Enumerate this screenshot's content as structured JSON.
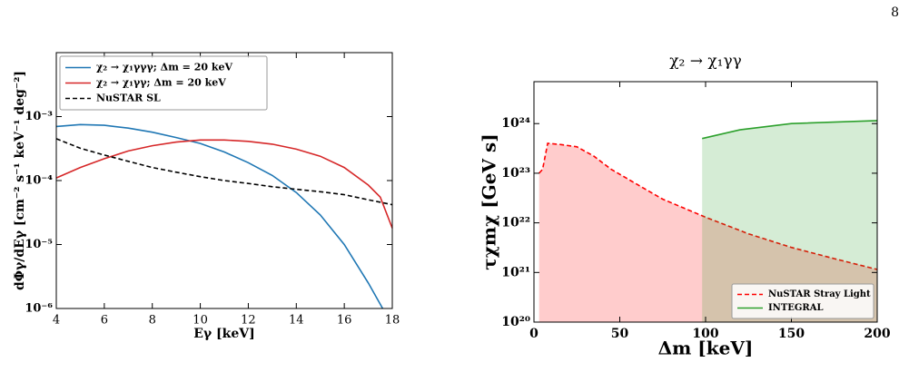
{
  "page_number": "8",
  "chart_data": [
    {
      "type": "line",
      "xlabel": "Eγ [keV]",
      "ylabel": "dΦγ/dEγ [cm⁻² s⁻¹ keV⁻¹ deg⁻²]",
      "xlim": [
        4,
        18
      ],
      "xticks": [
        4,
        6,
        8,
        10,
        12,
        14,
        16,
        18
      ],
      "ylog": true,
      "ylim": [
        1e-06,
        0.01
      ],
      "yticks": [
        {
          "value": 1e-06,
          "label": "10⁻⁶"
        },
        {
          "value": 1e-05,
          "label": "10⁻⁵"
        },
        {
          "value": 0.0001,
          "label": "10⁻⁴"
        },
        {
          "value": 0.001,
          "label": "10⁻³"
        }
      ],
      "legend": "upper left",
      "fill": false,
      "series": [
        {
          "name": "χ₂ → χ₁γγγ; Δm = 20 keV",
          "color": "#1f77b4",
          "linestyle": "solid",
          "x": [
            4,
            5,
            6,
            7,
            8,
            9,
            10,
            11,
            12,
            13,
            14,
            15,
            16,
            17,
            17.6
          ],
          "values": [
            0.0007,
            0.00075,
            0.00073,
            0.00066,
            0.00057,
            0.00047,
            0.00038,
            0.00028,
            0.00019,
            0.00012,
            6.5e-05,
            2.9e-05,
            1e-05,
            2.5e-06,
            1e-06
          ]
        },
        {
          "name": "χ₂ → χ₁γγ; Δm = 20 keV",
          "color": "#d62728",
          "linestyle": "solid",
          "x": [
            4,
            5,
            6,
            7,
            8,
            9,
            10,
            11,
            12,
            13,
            14,
            15,
            16,
            17,
            17.5,
            18
          ],
          "values": [
            0.00011,
            0.00016,
            0.00022,
            0.00029,
            0.00035,
            0.0004,
            0.00043,
            0.00043,
            0.00041,
            0.00037,
            0.00031,
            0.00024,
            0.00016,
            8.5e-05,
            5.5e-05,
            1.8e-05
          ]
        },
        {
          "name": "NuSTAR SL",
          "color": "#000000",
          "linestyle": "dashed",
          "x": [
            4,
            5,
            6,
            7,
            8,
            9,
            10,
            11,
            12,
            13,
            14,
            15,
            16,
            17,
            18
          ],
          "values": [
            0.00045,
            0.00032,
            0.00025,
            0.0002,
            0.00016,
            0.000135,
            0.000115,
            0.0001,
            9e-05,
            8e-05,
            7.3e-05,
            6.7e-05,
            6e-05,
            5e-05,
            4.2e-05
          ]
        }
      ]
    },
    {
      "type": "line",
      "title": "χ₂ → χ₁γγ",
      "xlabel": "Δm [keV]",
      "ylabel": "τχmχ [GeV s]",
      "xlim": [
        0,
        200
      ],
      "xticks": [
        0,
        50,
        100,
        150,
        200
      ],
      "ylog": true,
      "ylim": [
        1e+20,
        7e+24
      ],
      "yticks": [
        {
          "value": 1e+20,
          "label": "10²⁰"
        },
        {
          "value": 1e+21,
          "label": "10²¹"
        },
        {
          "value": 1e+22,
          "label": "10²²"
        },
        {
          "value": 1e+23,
          "label": "10²³"
        },
        {
          "value": 1e+24,
          "label": "10²⁴"
        }
      ],
      "legend": "lower right",
      "fill": true,
      "series": [
        {
          "name": "NuSTAR Stray Light",
          "color": "#ff0000",
          "linestyle": "dashed",
          "x": [
            3,
            5,
            8,
            15,
            25,
            35,
            45,
            60,
            75,
            100,
            125,
            150,
            175,
            200
          ],
          "values": [
            1e+23,
            1.2e+23,
            4e+23,
            3.8e+23,
            3.4e+23,
            2.2e+23,
            1.2e+23,
            6e+22,
            3e+22,
            1.3e+22,
            6e+21,
            3.2e+21,
            1.9e+21,
            1.15e+21
          ]
        },
        {
          "name": "INTEGRAL",
          "color": "#2ca02c",
          "linestyle": "solid",
          "x": [
            98,
            120,
            150,
            200
          ],
          "values": [
            5e+23,
            7.5e+23,
            1e+24,
            1.15e+24
          ]
        }
      ]
    }
  ]
}
